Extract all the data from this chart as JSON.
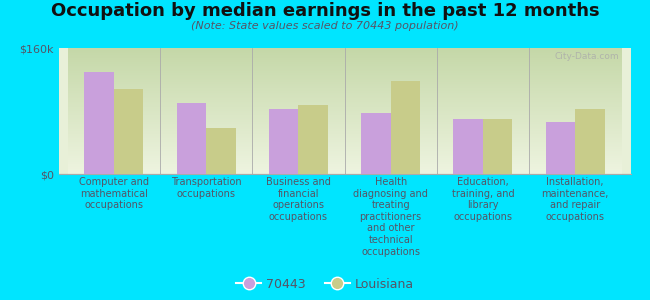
{
  "title": "Occupation by median earnings in the past 12 months",
  "subtitle": "(Note: State values scaled to 70443 population)",
  "background_color": "#00e5ff",
  "plot_bg_top": "#c8ddb0",
  "plot_bg_bottom": "#f0f4e8",
  "categories": [
    "Computer and\nmathematical\noccupations",
    "Transportation\noccupations",
    "Business and\nfinancial\noperations\noccupations",
    "Health\ndiagnosing and\ntreating\npractitioners\nand other\ntechnical\noccupations",
    "Education,\ntraining, and\nlibrary\noccupations",
    "Installation,\nmaintenance,\nand repair\noccupations"
  ],
  "values_70443": [
    130000,
    90000,
    82000,
    78000,
    70000,
    66000
  ],
  "values_louisiana": [
    108000,
    58000,
    88000,
    118000,
    70000,
    82000
  ],
  "color_70443": "#c9a0dc",
  "color_louisiana": "#c8cc8a",
  "ylim": [
    0,
    160000
  ],
  "yticks": [
    0,
    160000
  ],
  "ytick_labels": [
    "$0",
    "$160k"
  ],
  "legend_label_70443": "70443",
  "legend_label_louisiana": "Louisiana",
  "watermark": "City-Data.com",
  "text_color": "#555566",
  "label_fontsize": 7.0,
  "title_fontsize": 13,
  "subtitle_fontsize": 8
}
